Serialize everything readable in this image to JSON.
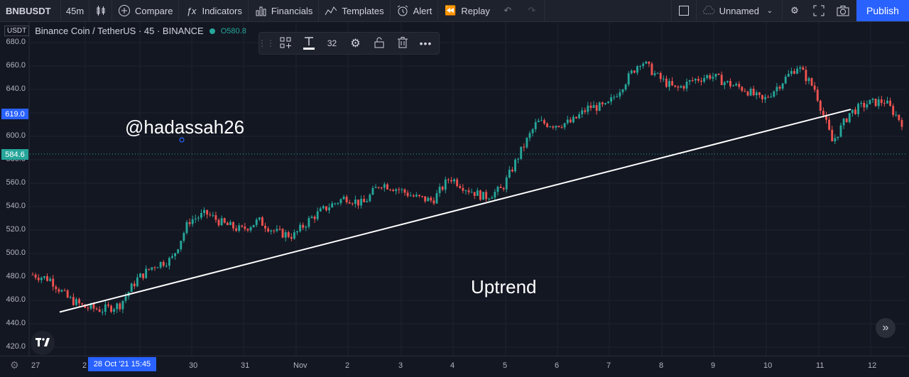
{
  "toolbar": {
    "symbol": "BNBUSDT",
    "interval": "45m",
    "compare_label": "Compare",
    "indicators_label": "Indicators",
    "financials_label": "Financials",
    "templates_label": "Templates",
    "alert_label": "Alert",
    "replay_label": "Replay",
    "layout_name": "Unnamed",
    "publish_label": "Publish"
  },
  "legend": {
    "currency_badge": "USDT",
    "title": "Binance Coin / TetherUS · 45 · BINANCE",
    "open_prefix": "O",
    "open_value": "580.8"
  },
  "drawing_toolbar": {
    "font_size": "32"
  },
  "annotations": {
    "watermark_text": "@hadassah26",
    "trend_text": "Uptrend"
  },
  "price_axis": {
    "labels": [
      "680.0",
      "660.0",
      "640.0",
      "620.0",
      "600.0",
      "580.0",
      "560.0",
      "540.0",
      "520.0",
      "500.0",
      "480.0",
      "460.0",
      "440.0",
      "420.0"
    ],
    "crosshair_price": "619.0",
    "last_price": "584.6"
  },
  "time_axis": {
    "labels": [
      "27",
      "2",
      "30",
      "31",
      "Nov",
      "2",
      "3",
      "4",
      "5",
      "6",
      "7",
      "8",
      "9",
      "10",
      "11",
      "12"
    ],
    "crosshair_time": "28 Oct '21   15:45"
  },
  "chart_data": {
    "type": "candlestick",
    "symbol": "BNBUSDT",
    "interval": "45m",
    "y_range": [
      415,
      685
    ],
    "close_path": [
      {
        "t": "Oct 27",
        "price": 482
      },
      {
        "t": "Oct 27",
        "price": 478
      },
      {
        "t": "Oct 27",
        "price": 462
      },
      {
        "t": "Oct 28",
        "price": 454
      },
      {
        "t": "Oct 28",
        "price": 452
      },
      {
        "t": "Oct 28",
        "price": 456
      },
      {
        "t": "Oct 29",
        "price": 478
      },
      {
        "t": "Oct 29",
        "price": 490
      },
      {
        "t": "Oct 29",
        "price": 495
      },
      {
        "t": "Oct 30",
        "price": 528
      },
      {
        "t": "Oct 30",
        "price": 534
      },
      {
        "t": "Oct 30",
        "price": 525
      },
      {
        "t": "Oct 31",
        "price": 520
      },
      {
        "t": "Oct 31",
        "price": 528
      },
      {
        "t": "Oct 31",
        "price": 518
      },
      {
        "t": "Nov 1",
        "price": 515
      },
      {
        "t": "Nov 1",
        "price": 530
      },
      {
        "t": "Nov 1",
        "price": 540
      },
      {
        "t": "Nov 2",
        "price": 548
      },
      {
        "t": "Nov 2",
        "price": 542
      },
      {
        "t": "Nov 2",
        "price": 560
      },
      {
        "t": "Nov 3",
        "price": 555
      },
      {
        "t": "Nov 3",
        "price": 548
      },
      {
        "t": "Nov 3",
        "price": 545
      },
      {
        "t": "Nov 4",
        "price": 565
      },
      {
        "t": "Nov 4",
        "price": 555
      },
      {
        "t": "Nov 4",
        "price": 548
      },
      {
        "t": "Nov 5",
        "price": 555
      },
      {
        "t": "Nov 5",
        "price": 585
      },
      {
        "t": "Nov 5",
        "price": 612
      },
      {
        "t": "Nov 6",
        "price": 610
      },
      {
        "t": "Nov 6",
        "price": 612
      },
      {
        "t": "Nov 6",
        "price": 625
      },
      {
        "t": "Nov 7",
        "price": 625
      },
      {
        "t": "Nov 7",
        "price": 645
      },
      {
        "t": "Nov 7",
        "price": 665
      },
      {
        "t": "Nov 8",
        "price": 650
      },
      {
        "t": "Nov 8",
        "price": 640
      },
      {
        "t": "Nov 8",
        "price": 648
      },
      {
        "t": "Nov 9",
        "price": 652
      },
      {
        "t": "Nov 9",
        "price": 645
      },
      {
        "t": "Nov 9",
        "price": 640
      },
      {
        "t": "Nov 10",
        "price": 630
      },
      {
        "t": "Nov 10",
        "price": 645
      },
      {
        "t": "Nov 10",
        "price": 660
      },
      {
        "t": "Nov 11",
        "price": 640
      },
      {
        "t": "Nov 11",
        "price": 595
      },
      {
        "t": "Nov 11",
        "price": 620
      },
      {
        "t": "Nov 12",
        "price": 628
      },
      {
        "t": "Nov 12",
        "price": 630
      },
      {
        "t": "Nov 12",
        "price": 612
      }
    ],
    "trendline": {
      "from": {
        "t": "Oct 28",
        "price": 450
      },
      "to": {
        "t": "Nov 11",
        "price": 623
      }
    },
    "colors": {
      "up": "#26a69a",
      "down": "#ef5350",
      "background": "#131722",
      "grid": "#1f2330",
      "trendline": "#ffffff"
    }
  }
}
